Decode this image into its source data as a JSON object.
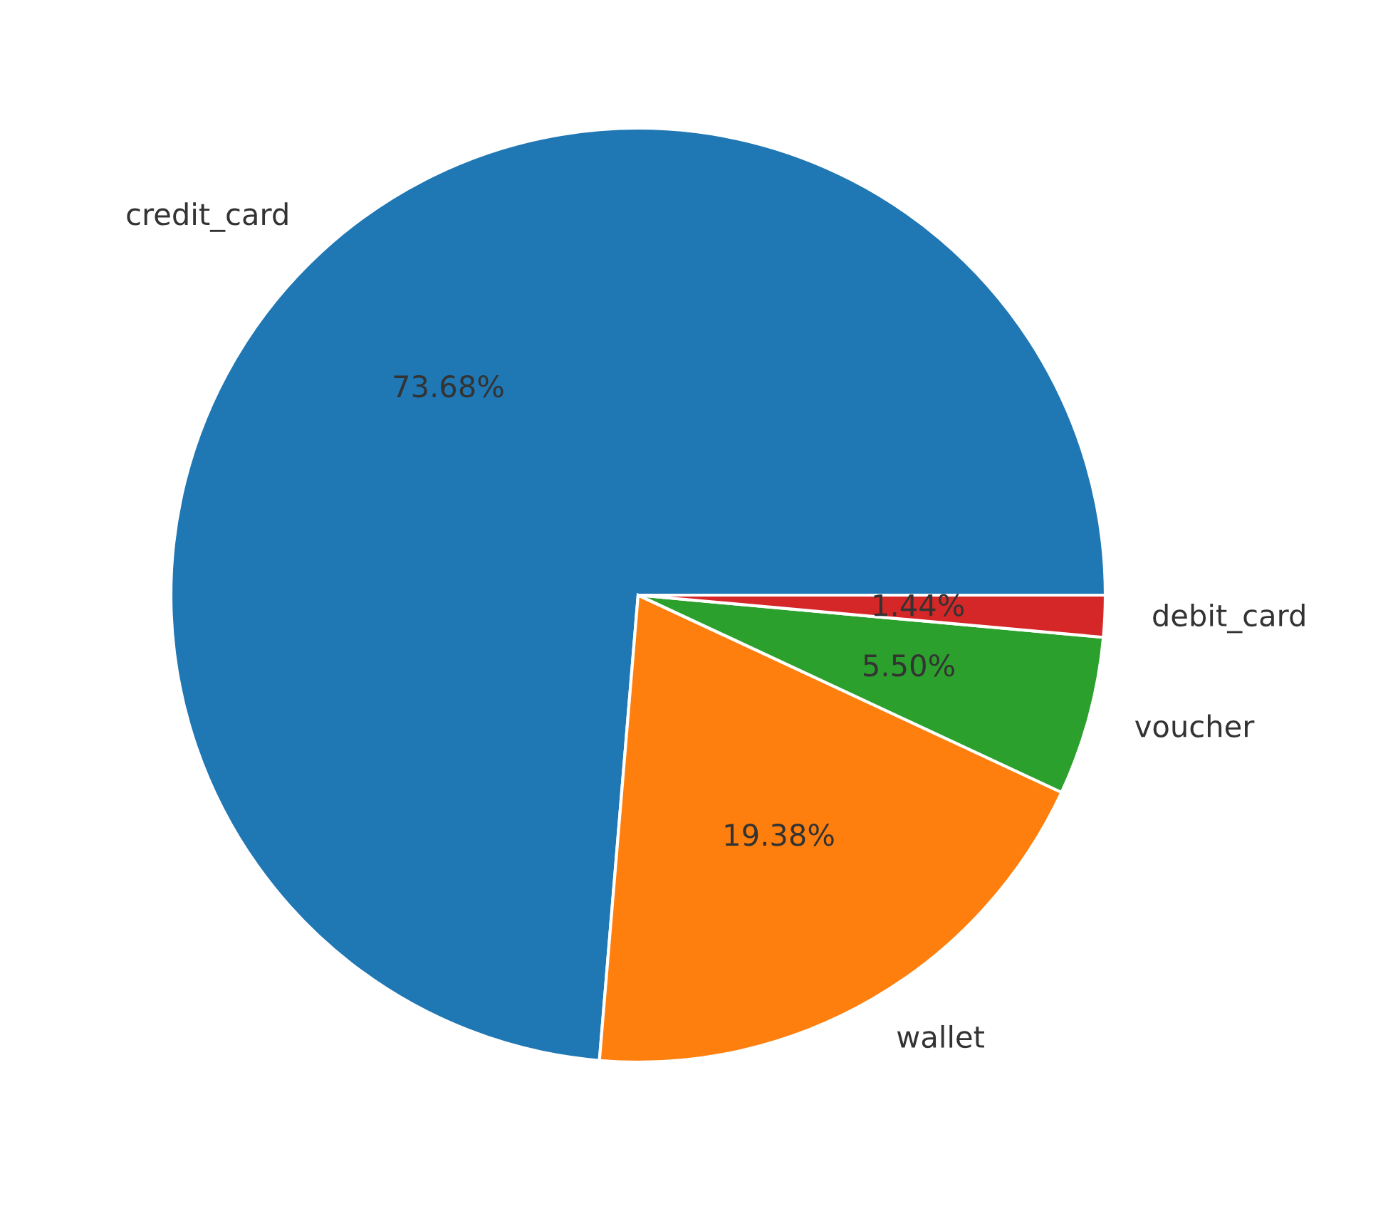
{
  "chart_data": {
    "type": "pie",
    "categories": [
      "credit_card",
      "wallet",
      "voucher",
      "debit_card"
    ],
    "values": [
      73.68,
      19.38,
      5.5,
      1.44
    ],
    "colors": [
      "#1f77b4",
      "#ff7f0e",
      "#2ca02c",
      "#d62728"
    ],
    "value_labels": [
      "73.68%",
      "19.38%",
      "5.50%",
      "1.44%"
    ],
    "legend": false
  }
}
